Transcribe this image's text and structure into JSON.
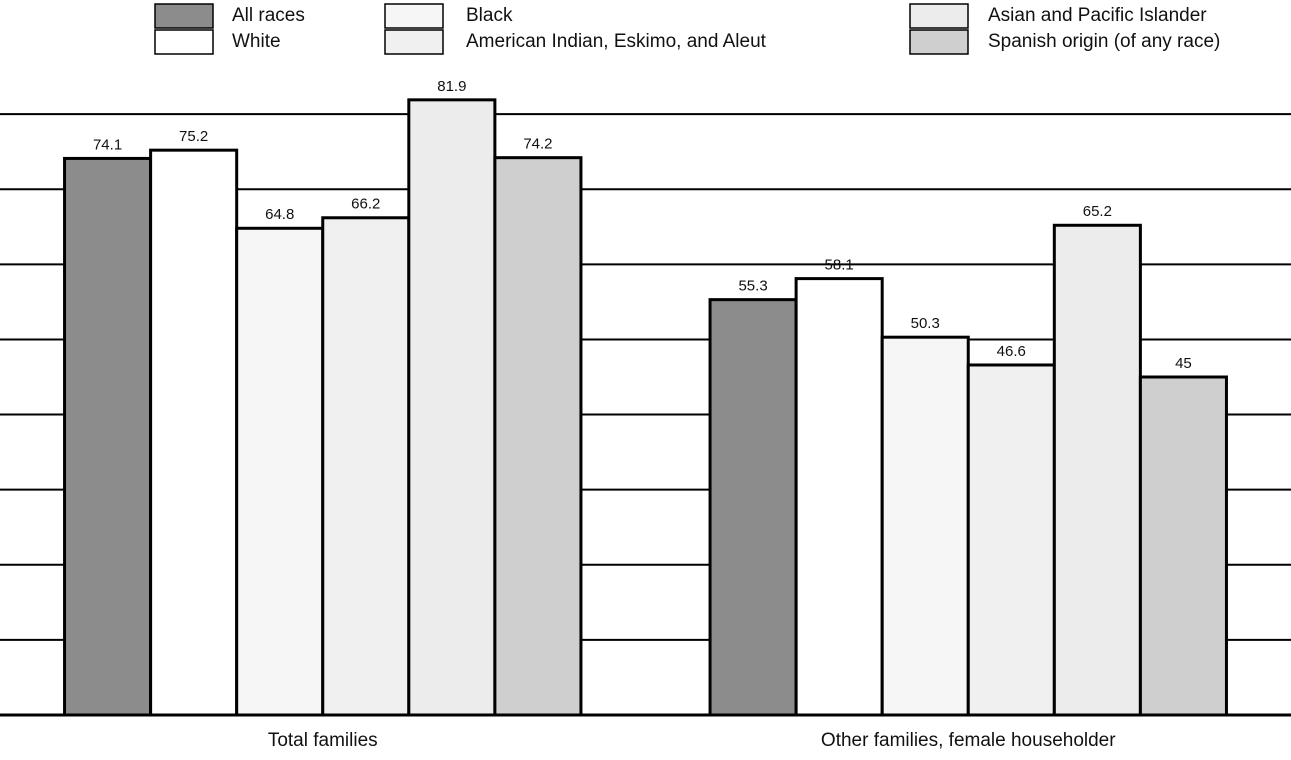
{
  "chart_data": {
    "type": "bar",
    "categories": [
      "Total families",
      "Other families, female householder"
    ],
    "series": [
      {
        "name": "All races",
        "color": "#8c8c8c",
        "values": [
          74.1,
          55.3
        ]
      },
      {
        "name": "White",
        "color": "#ffffff",
        "values": [
          75.2,
          58.1
        ]
      },
      {
        "name": "Black",
        "color": "#f6f6f6",
        "values": [
          64.8,
          50.3
        ]
      },
      {
        "name": "American Indian, Eskimo, and Aleut",
        "color": "#f0f0f0",
        "values": [
          66.2,
          46.6
        ]
      },
      {
        "name": "Asian and Pacific Islander",
        "color": "#ececec",
        "values": [
          81.9,
          65.2
        ]
      },
      {
        "name": "Spanish origin (of any race)",
        "color": "#cfcfcf",
        "values": [
          74.2,
          45.0
        ]
      }
    ],
    "ylim": [
      0,
      90
    ],
    "yticks": [
      0,
      10,
      20,
      30,
      40,
      50,
      60,
      70,
      80
    ],
    "grid": true
  }
}
